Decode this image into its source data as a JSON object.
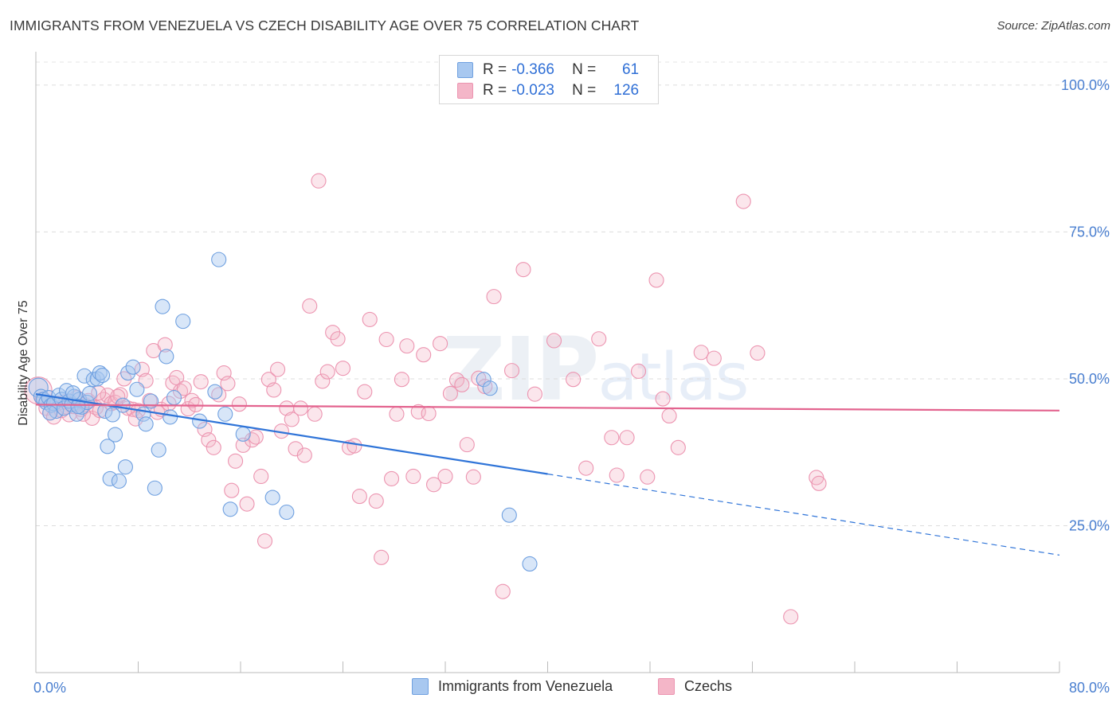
{
  "title": "IMMIGRANTS FROM VENEZUELA VS CZECH DISABILITY AGE OVER 75 CORRELATION CHART",
  "source": "Source: ZipAtlas.com",
  "watermark": {
    "zip": "ZIP",
    "atlas": "atlas"
  },
  "legend_top": [
    {
      "r_label": "R =",
      "r_value": "-0.366",
      "n_label": "N =",
      "n_value": "61",
      "color": "#a8c8f0"
    },
    {
      "r_label": "R =",
      "r_value": "-0.023",
      "n_label": "N =",
      "n_value": "126",
      "color": "#f4b6c8"
    }
  ],
  "legend_bottom": [
    {
      "label": "Immigrants from Venezuela",
      "color": "#a8c8f0"
    },
    {
      "label": "Czechs",
      "color": "#f4b6c8"
    }
  ],
  "chart_data": {
    "type": "scatter",
    "title": "IMMIGRANTS FROM VENEZUELA VS CZECH DISABILITY AGE OVER 75 CORRELATION CHART",
    "xlabel": "",
    "ylabel": "Disability Age Over 75",
    "xlim": [
      0,
      80
    ],
    "ylim": [
      0,
      105
    ],
    "x_tick_labels": [
      "0.0%",
      "80.0%"
    ],
    "y_ticks": [
      25,
      50,
      75,
      100
    ],
    "y_tick_labels": [
      "25.0%",
      "50.0%",
      "75.0%",
      "100.0%"
    ],
    "series": [
      {
        "name": "Immigrants from Venezuela",
        "color": "#6fa0e0",
        "fill": "rgba(168,200,240,0.45)",
        "trend": {
          "x0": 0,
          "y0": 47.4,
          "x1": 40,
          "y1": 33.8,
          "dash_to_x": 80,
          "dash_to_y": 20.0,
          "color": "#2f74d8"
        },
        "points": [
          [
            0.2,
            48.5
          ],
          [
            0.4,
            47.0
          ],
          [
            0.6,
            46.5
          ],
          [
            0.8,
            46.0
          ],
          [
            1.0,
            46.8
          ],
          [
            1.2,
            45.5
          ],
          [
            1.4,
            45.8
          ],
          [
            1.6,
            44.5
          ],
          [
            1.8,
            47.2
          ],
          [
            2.0,
            46.5
          ],
          [
            2.2,
            45.0
          ],
          [
            2.4,
            48.0
          ],
          [
            2.6,
            46.2
          ],
          [
            2.8,
            45.6
          ],
          [
            3.0,
            47.0
          ],
          [
            3.2,
            44.0
          ],
          [
            3.4,
            46.5
          ],
          [
            3.6,
            45.2
          ],
          [
            3.8,
            50.5
          ],
          [
            4.0,
            46.0
          ],
          [
            4.2,
            47.5
          ],
          [
            4.5,
            49.9
          ],
          [
            4.8,
            50.0
          ],
          [
            5.0,
            51.0
          ],
          [
            5.2,
            50.6
          ],
          [
            5.4,
            44.5
          ],
          [
            5.6,
            38.5
          ],
          [
            5.8,
            33.0
          ],
          [
            6.2,
            40.5
          ],
          [
            6.5,
            32.6
          ],
          [
            6.8,
            45.5
          ],
          [
            7.0,
            35.0
          ],
          [
            7.2,
            51.0
          ],
          [
            7.6,
            52.0
          ],
          [
            7.9,
            48.2
          ],
          [
            8.4,
            44.0
          ],
          [
            8.6,
            42.3
          ],
          [
            9.3,
            31.4
          ],
          [
            9.6,
            37.9
          ],
          [
            9.9,
            62.3
          ],
          [
            10.2,
            53.8
          ],
          [
            10.5,
            43.5
          ],
          [
            10.8,
            46.8
          ],
          [
            11.5,
            59.8
          ],
          [
            12.8,
            42.8
          ],
          [
            14.0,
            47.8
          ],
          [
            14.3,
            70.3
          ],
          [
            14.8,
            44.0
          ],
          [
            15.2,
            27.8
          ],
          [
            16.2,
            40.6
          ],
          [
            18.5,
            29.8
          ],
          [
            19.6,
            27.3
          ],
          [
            35.0,
            49.9
          ],
          [
            35.5,
            48.4
          ],
          [
            37.0,
            26.8
          ],
          [
            38.6,
            18.5
          ],
          [
            2.9,
            47.6
          ],
          [
            3.3,
            45.3
          ],
          [
            1.1,
            44.2
          ],
          [
            6.0,
            43.9
          ],
          [
            9.0,
            46.2
          ]
        ]
      },
      {
        "name": "Czechs",
        "color": "#ec94b0",
        "fill": "rgba(244,182,200,0.35)",
        "trend": {
          "x0": 0,
          "y0": 45.6,
          "x1": 80,
          "y1": 44.6,
          "color": "#e3648f"
        },
        "points": [
          [
            0.2,
            48.0
          ],
          [
            0.5,
            46.5
          ],
          [
            0.8,
            45.0
          ],
          [
            1.1,
            44.2
          ],
          [
            1.4,
            43.5
          ],
          [
            1.7,
            45.8
          ],
          [
            2.0,
            44.6
          ],
          [
            2.3,
            46.1
          ],
          [
            2.6,
            43.9
          ],
          [
            2.9,
            45.3
          ],
          [
            3.2,
            46.8
          ],
          [
            3.5,
            44.8
          ],
          [
            3.8,
            45.6
          ],
          [
            4.1,
            46.3
          ],
          [
            4.4,
            43.3
          ],
          [
            4.7,
            45.1
          ],
          [
            5.0,
            44.6
          ],
          [
            5.3,
            46.5
          ],
          [
            5.6,
            47.2
          ],
          [
            5.9,
            45.8
          ],
          [
            6.2,
            46.0
          ],
          [
            6.6,
            47.3
          ],
          [
            6.9,
            50.0
          ],
          [
            7.2,
            45.0
          ],
          [
            7.6,
            44.8
          ],
          [
            8.0,
            44.6
          ],
          [
            8.3,
            51.6
          ],
          [
            8.6,
            49.7
          ],
          [
            8.9,
            46.3
          ],
          [
            9.2,
            54.8
          ],
          [
            9.5,
            44.3
          ],
          [
            9.8,
            44.8
          ],
          [
            10.1,
            55.8
          ],
          [
            10.4,
            45.8
          ],
          [
            10.7,
            49.3
          ],
          [
            11.0,
            50.2
          ],
          [
            11.3,
            47.9
          ],
          [
            11.6,
            48.4
          ],
          [
            11.9,
            44.9
          ],
          [
            12.2,
            46.3
          ],
          [
            12.5,
            45.6
          ],
          [
            12.9,
            49.5
          ],
          [
            13.2,
            41.4
          ],
          [
            13.5,
            39.6
          ],
          [
            13.9,
            38.3
          ],
          [
            14.3,
            47.3
          ],
          [
            14.7,
            51.0
          ],
          [
            15.0,
            49.2
          ],
          [
            15.3,
            31.0
          ],
          [
            15.6,
            36.0
          ],
          [
            15.9,
            45.7
          ],
          [
            16.2,
            38.7
          ],
          [
            16.5,
            28.7
          ],
          [
            16.9,
            39.6
          ],
          [
            17.2,
            40.1
          ],
          [
            17.6,
            33.4
          ],
          [
            17.9,
            22.4
          ],
          [
            18.2,
            49.9
          ],
          [
            18.6,
            48.1
          ],
          [
            18.9,
            51.6
          ],
          [
            19.2,
            41.1
          ],
          [
            19.6,
            45.0
          ],
          [
            20.0,
            43.1
          ],
          [
            20.3,
            38.1
          ],
          [
            20.7,
            45.0
          ],
          [
            21.0,
            37.0
          ],
          [
            21.4,
            62.4
          ],
          [
            21.8,
            44.0
          ],
          [
            22.1,
            83.7
          ],
          [
            22.4,
            49.6
          ],
          [
            22.8,
            51.2
          ],
          [
            23.2,
            57.9
          ],
          [
            23.6,
            56.8
          ],
          [
            24.0,
            51.8
          ],
          [
            24.5,
            38.3
          ],
          [
            24.9,
            38.6
          ],
          [
            25.3,
            30.0
          ],
          [
            25.7,
            47.8
          ],
          [
            26.1,
            60.1
          ],
          [
            26.6,
            29.2
          ],
          [
            27.0,
            19.6
          ],
          [
            27.4,
            56.7
          ],
          [
            27.8,
            33.0
          ],
          [
            28.2,
            44.0
          ],
          [
            28.6,
            49.9
          ],
          [
            29.0,
            55.6
          ],
          [
            29.5,
            33.4
          ],
          [
            29.9,
            44.4
          ],
          [
            30.3,
            54.1
          ],
          [
            30.7,
            44.1
          ],
          [
            31.1,
            32.0
          ],
          [
            31.6,
            56.0
          ],
          [
            32.0,
            33.4
          ],
          [
            32.4,
            47.5
          ],
          [
            32.9,
            49.8
          ],
          [
            33.3,
            49.0
          ],
          [
            33.7,
            38.8
          ],
          [
            34.2,
            33.3
          ],
          [
            34.6,
            50.1
          ],
          [
            35.1,
            48.7
          ],
          [
            35.8,
            64.0
          ],
          [
            36.5,
            13.8
          ],
          [
            37.2,
            51.4
          ],
          [
            38.1,
            68.6
          ],
          [
            39.0,
            47.4
          ],
          [
            40.5,
            56.5
          ],
          [
            42.0,
            49.9
          ],
          [
            43.0,
            34.8
          ],
          [
            44.0,
            56.8
          ],
          [
            45.0,
            40.0
          ],
          [
            45.4,
            33.6
          ],
          [
            46.2,
            40.0
          ],
          [
            47.1,
            51.3
          ],
          [
            47.8,
            33.3
          ],
          [
            48.5,
            66.8
          ],
          [
            49.0,
            46.6
          ],
          [
            49.5,
            43.7
          ],
          [
            50.2,
            38.3
          ],
          [
            52.0,
            54.5
          ],
          [
            53.0,
            53.5
          ],
          [
            55.3,
            80.2
          ],
          [
            56.4,
            54.4
          ],
          [
            59.0,
            9.5
          ],
          [
            61.0,
            33.2
          ],
          [
            61.2,
            32.2
          ],
          [
            2.4,
            45.2
          ],
          [
            3.7,
            44.0
          ],
          [
            4.9,
            47.6
          ],
          [
            6.4,
            47.0
          ],
          [
            7.8,
            43.2
          ]
        ]
      }
    ]
  }
}
